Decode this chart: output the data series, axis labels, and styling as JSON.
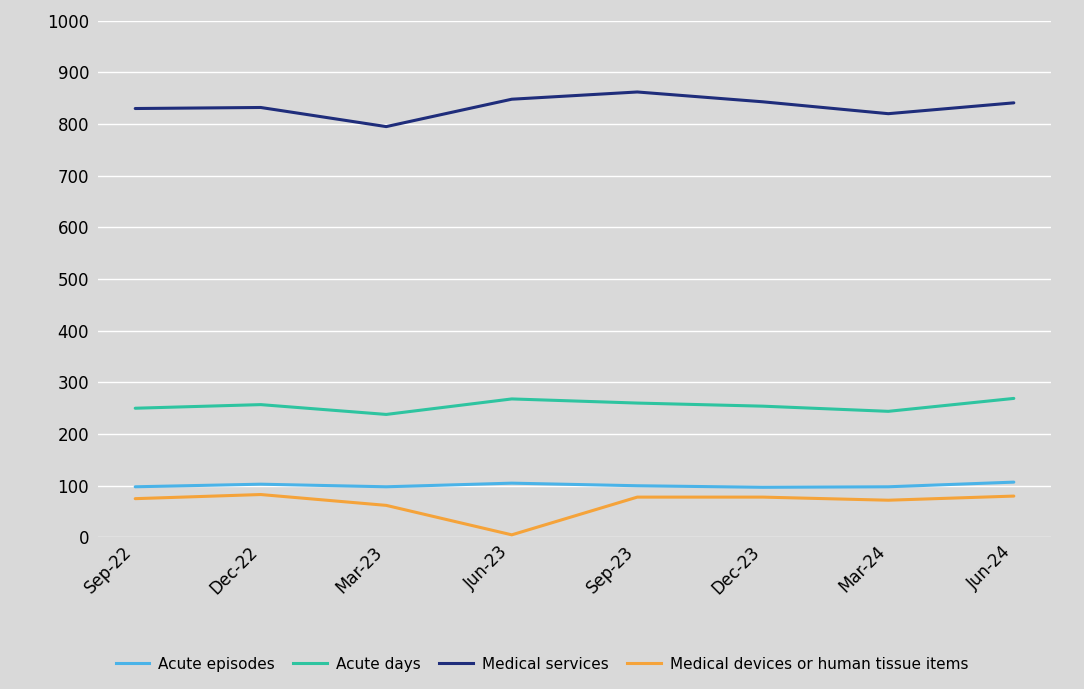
{
  "x_labels": [
    "Sep-22",
    "Dec-22",
    "Mar-23",
    "Jun-23",
    "Sep-23",
    "Dec-23",
    "Mar-24",
    "Jun-24"
  ],
  "series": {
    "Acute episodes": {
      "values": [
        98,
        103,
        98,
        105,
        100,
        97,
        98,
        107
      ],
      "color": "#4ab3e8",
      "linewidth": 2.2
    },
    "Acute days": {
      "values": [
        250,
        257,
        238,
        268,
        260,
        254,
        244,
        269
      ],
      "color": "#2ec4a0",
      "linewidth": 2.2
    },
    "Medical services": {
      "values": [
        830,
        832,
        795,
        848,
        862,
        843,
        820,
        841
      ],
      "color": "#1f2d7b",
      "linewidth": 2.2
    },
    "Medical devices or human tissue items": {
      "values": [
        75,
        83,
        62,
        5,
        78,
        78,
        72,
        80
      ],
      "color": "#f5a33a",
      "linewidth": 2.2
    }
  },
  "ylim": [
    0,
    1000
  ],
  "yticks": [
    0,
    100,
    200,
    300,
    400,
    500,
    600,
    700,
    800,
    900,
    1000
  ],
  "background_color": "#d9d9d9",
  "grid_color": "#ffffff",
  "legend_order": [
    "Acute episodes",
    "Acute days",
    "Medical services",
    "Medical devices or human tissue items"
  ],
  "tick_fontsize": 12,
  "legend_fontsize": 11
}
